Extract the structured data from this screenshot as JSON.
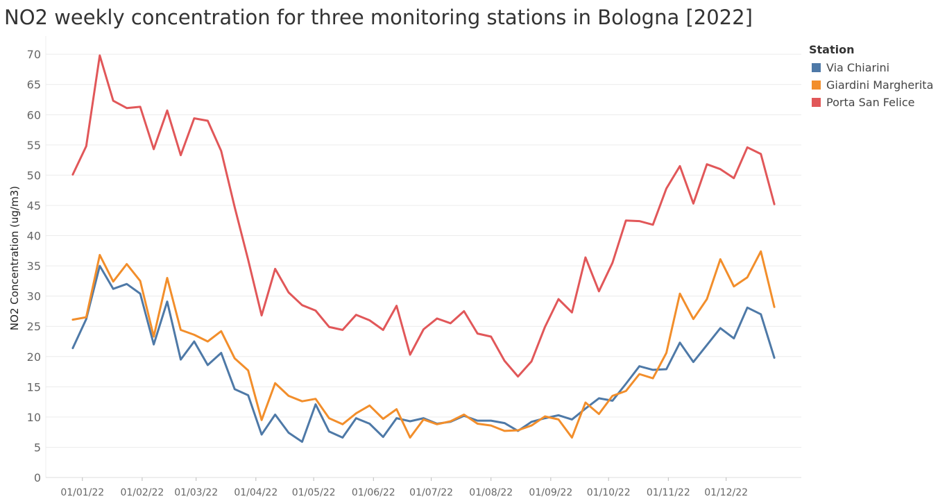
{
  "chart_data": {
    "type": "line",
    "title": "NO2 weekly concentration for three monitoring stations in Bologna [2022]",
    "ylabel": "NO2 Concentration (ug/m3)",
    "xlabel": "",
    "ylim": [
      0,
      73
    ],
    "yticks": [
      0,
      5,
      10,
      15,
      20,
      25,
      30,
      35,
      40,
      45,
      50,
      55,
      60,
      65,
      70
    ],
    "x_tick_labels": [
      "01/01/22",
      "01/02/22",
      "01/03/22",
      "01/04/22",
      "01/05/22",
      "01/06/22",
      "01/07/22",
      "01/08/22",
      "01/09/22",
      "01/10/22",
      "01/11/22",
      "01/12/22"
    ],
    "grid": true,
    "legend_title": "Station",
    "legend_position": "top-right",
    "x": [
      "2021-12-27",
      "2022-01-03",
      "2022-01-10",
      "2022-01-17",
      "2022-01-24",
      "2022-01-31",
      "2022-02-07",
      "2022-02-14",
      "2022-02-21",
      "2022-02-28",
      "2022-03-07",
      "2022-03-14",
      "2022-03-21",
      "2022-03-28",
      "2022-04-04",
      "2022-04-11",
      "2022-04-18",
      "2022-04-25",
      "2022-05-02",
      "2022-05-09",
      "2022-05-16",
      "2022-05-23",
      "2022-05-30",
      "2022-06-06",
      "2022-06-13",
      "2022-06-20",
      "2022-06-27",
      "2022-07-04",
      "2022-07-11",
      "2022-07-18",
      "2022-07-25",
      "2022-08-01",
      "2022-08-08",
      "2022-08-15",
      "2022-08-22",
      "2022-08-29",
      "2022-09-05",
      "2022-09-12",
      "2022-09-19",
      "2022-09-26",
      "2022-10-03",
      "2022-10-10",
      "2022-10-17",
      "2022-10-24",
      "2022-10-31",
      "2022-11-07",
      "2022-11-14",
      "2022-11-21",
      "2022-11-28",
      "2022-12-05",
      "2022-12-12",
      "2022-12-19",
      "2022-12-26"
    ],
    "series": [
      {
        "name": "Via Chiarini",
        "color": "#4e79a7",
        "values": [
          21.4,
          26.2,
          35.0,
          31.2,
          32.0,
          30.4,
          22.0,
          29.1,
          19.5,
          22.5,
          18.6,
          20.6,
          14.6,
          13.6,
          7.1,
          10.4,
          7.4,
          5.9,
          12.1,
          7.6,
          6.6,
          9.8,
          8.9,
          6.7,
          9.8,
          9.3,
          9.8,
          8.9,
          9.2,
          10.2,
          9.4,
          9.4,
          9.0,
          7.7,
          9.2,
          9.8,
          10.3,
          9.6,
          11.4,
          13.1,
          12.7,
          15.5,
          18.4,
          17.8,
          17.9,
          22.3,
          19.1,
          21.9,
          24.7,
          23.0,
          28.1,
          27.0,
          19.8
        ]
      },
      {
        "name": "Giardini Margherita",
        "color": "#f28e2b",
        "values": [
          26.1,
          26.5,
          36.8,
          32.4,
          35.3,
          32.5,
          23.3,
          33.0,
          24.4,
          23.6,
          22.5,
          24.2,
          19.7,
          17.7,
          9.5,
          15.6,
          13.5,
          12.6,
          13.0,
          9.8,
          8.8,
          10.6,
          11.9,
          9.7,
          11.3,
          6.6,
          9.6,
          8.8,
          9.3,
          10.4,
          8.9,
          8.6,
          7.7,
          7.8,
          8.6,
          10.1,
          9.6,
          6.6,
          12.4,
          10.5,
          13.5,
          14.3,
          17.1,
          16.4,
          20.6,
          30.4,
          26.2,
          29.5,
          36.1,
          31.6,
          33.1,
          37.4,
          28.2
        ]
      },
      {
        "name": "Porta San Felice",
        "color": "#e15759",
        "values": [
          50.1,
          54.8,
          69.8,
          62.3,
          61.1,
          61.3,
          54.3,
          60.7,
          53.3,
          59.4,
          59.0,
          54.0,
          44.7,
          36.0,
          26.8,
          34.5,
          30.6,
          28.5,
          27.6,
          24.9,
          24.4,
          26.9,
          26.0,
          24.4,
          28.4,
          20.3,
          24.5,
          26.3,
          25.5,
          27.5,
          23.8,
          23.3,
          19.3,
          16.7,
          19.2,
          24.9,
          29.5,
          27.3,
          36.4,
          30.8,
          35.5,
          42.5,
          42.4,
          41.8,
          47.8,
          51.5,
          45.3,
          51.8,
          51.0,
          49.5,
          54.6,
          53.5,
          45.2
        ]
      }
    ]
  }
}
